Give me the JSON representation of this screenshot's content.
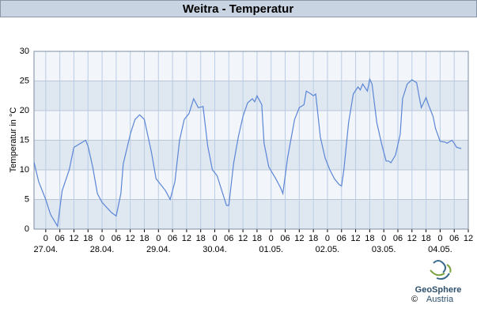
{
  "chart_data": {
    "type": "line",
    "title": "Weitra - Temperatur",
    "y_label": "Temperatur in °C",
    "x": [
      -5,
      -3,
      0,
      2,
      5,
      7,
      10,
      12,
      17,
      18,
      20,
      22,
      24,
      28,
      30,
      32,
      33,
      36,
      38,
      40,
      42,
      45,
      47,
      51,
      53,
      55,
      57,
      59,
      61,
      63,
      65,
      67,
      69,
      71,
      73,
      75,
      77,
      78,
      80,
      82,
      84,
      86,
      88,
      89,
      90,
      92,
      93,
      95,
      98,
      100,
      101,
      103,
      106,
      108,
      110,
      111,
      113,
      114,
      115,
      117,
      119,
      121,
      123,
      125,
      126,
      127,
      129,
      131,
      133,
      134,
      135,
      137,
      138,
      139,
      141,
      143,
      145,
      146,
      147,
      149,
      151,
      152,
      154,
      156,
      158,
      159,
      160,
      162,
      163,
      165,
      166,
      168,
      170,
      171,
      173,
      174,
      175,
      177
    ],
    "series": [
      {
        "name": "Temperatur",
        "color": "#5b86d6",
        "values": [
          11.3,
          8,
          5,
          2.5,
          0.5,
          6.5,
          10,
          13.8,
          15,
          14,
          10.5,
          6,
          4.5,
          2.8,
          2.2,
          6,
          11,
          16,
          18.5,
          19.3,
          18.5,
          13,
          8.5,
          6.5,
          5,
          8,
          15,
          18.5,
          19.5,
          22,
          20.5,
          20.7,
          14,
          10,
          9,
          6.5,
          4,
          4,
          11,
          15.5,
          19,
          21.3,
          22,
          21.5,
          22.5,
          21,
          14.5,
          10.5,
          8.5,
          7,
          6,
          12,
          18.5,
          20.5,
          21,
          23.3,
          22.8,
          22.5,
          22.8,
          15.5,
          12,
          10,
          8.5,
          7.5,
          7.3,
          10,
          18,
          22.8,
          24,
          23.5,
          24.5,
          23.3,
          25.3,
          24.5,
          18,
          14.5,
          11.5,
          11.5,
          11.2,
          12.5,
          16,
          22,
          24.5,
          25.2,
          24.7,
          22.5,
          20.5,
          22.2,
          21,
          19,
          17,
          14.8,
          14.7,
          14.5,
          15,
          14.5,
          13.8,
          13.6
        ]
      }
    ],
    "xlim": [
      -5,
      180
    ],
    "xticks": [
      {
        "value": 0,
        "label": "0"
      },
      {
        "value": 6,
        "label": "06"
      },
      {
        "value": 12,
        "label": "12"
      },
      {
        "value": 18,
        "label": "18"
      },
      {
        "value": 24,
        "label": "0"
      },
      {
        "value": 30,
        "label": "06"
      },
      {
        "value": 36,
        "label": "12"
      },
      {
        "value": 42,
        "label": "18"
      },
      {
        "value": 48,
        "label": "0"
      },
      {
        "value": 54,
        "label": "06"
      },
      {
        "value": 60,
        "label": "12"
      },
      {
        "value": 66,
        "label": "18"
      },
      {
        "value": 72,
        "label": "0"
      },
      {
        "value": 78,
        "label": "06"
      },
      {
        "value": 84,
        "label": "12"
      },
      {
        "value": 90,
        "label": "18"
      },
      {
        "value": 96,
        "label": "0"
      },
      {
        "value": 102,
        "label": "06"
      },
      {
        "value": 108,
        "label": "12"
      },
      {
        "value": 114,
        "label": "18"
      },
      {
        "value": 120,
        "label": "0"
      },
      {
        "value": 126,
        "label": "06"
      },
      {
        "value": 132,
        "label": "12"
      },
      {
        "value": 138,
        "label": "18"
      },
      {
        "value": 144,
        "label": "0"
      },
      {
        "value": 150,
        "label": "06"
      },
      {
        "value": 156,
        "label": "12"
      },
      {
        "value": 162,
        "label": "18"
      },
      {
        "value": 168,
        "label": "0"
      },
      {
        "value": 174,
        "label": "06"
      },
      {
        "value": 180,
        "label": "12"
      }
    ],
    "date_ticks": [
      {
        "value": 0,
        "label": "27.04."
      },
      {
        "value": 24,
        "label": "28.04."
      },
      {
        "value": 48,
        "label": "29.04."
      },
      {
        "value": 72,
        "label": "30.04."
      },
      {
        "value": 96,
        "label": "01.05."
      },
      {
        "value": 120,
        "label": "02.05."
      },
      {
        "value": 144,
        "label": "03.05."
      },
      {
        "value": 168,
        "label": "04.05."
      }
    ],
    "ylim": [
      0,
      30
    ],
    "yticks": [
      0,
      5,
      10,
      15,
      20,
      25,
      30
    ],
    "grid": true
  },
  "logo": {
    "name": "GeoSphere",
    "country": "Austria",
    "copyright": "©"
  }
}
